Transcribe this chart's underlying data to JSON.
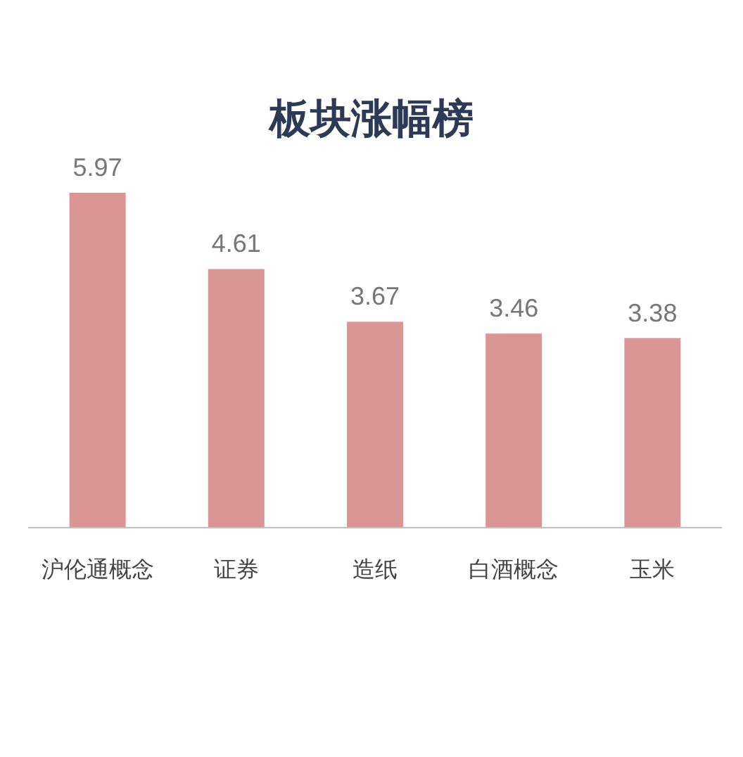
{
  "chart_data": {
    "type": "bar",
    "title": "板块涨幅榜",
    "categories": [
      "沪伦通概念",
      "证券",
      "造纸",
      "白酒概念",
      "玉米"
    ],
    "values": [
      5.97,
      4.61,
      3.67,
      3.46,
      3.38
    ],
    "color": "#d99694",
    "data_labels": true
  }
}
